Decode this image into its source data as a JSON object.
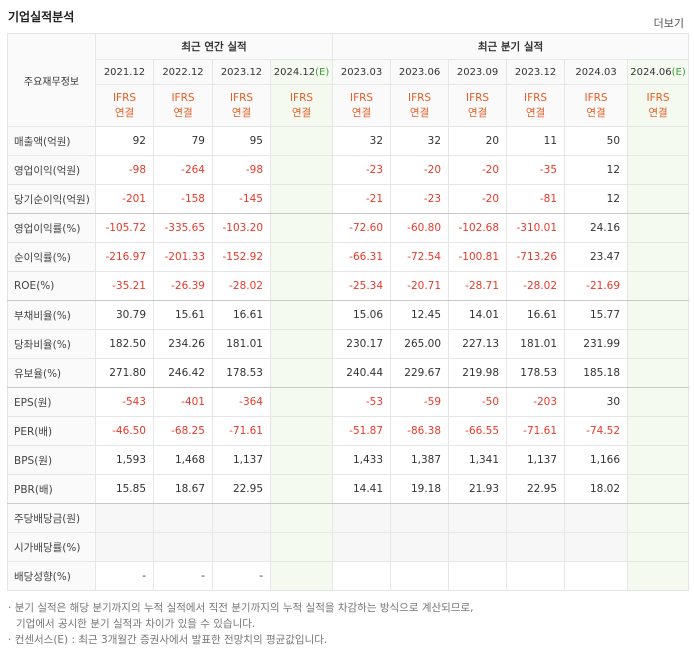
{
  "header": {
    "title": "기업실적분석",
    "more": "더보기"
  },
  "table": {
    "corner": "주요재무정보",
    "groups": [
      {
        "label": "최근 연간 실적",
        "span": 4
      },
      {
        "label": "최근 분기 실적",
        "span": 6
      }
    ],
    "periods": [
      {
        "label": "2021.12"
      },
      {
        "label": "2022.12"
      },
      {
        "label": "2023.12"
      },
      {
        "label": "2024.12",
        "estimate": "(E)"
      },
      {
        "label": "2023.03"
      },
      {
        "label": "2023.06"
      },
      {
        "label": "2023.09"
      },
      {
        "label": "2023.12"
      },
      {
        "label": "2024.03"
      },
      {
        "label": "2024.06",
        "estimate": "(E)"
      }
    ],
    "basis": {
      "standard": "IFRS",
      "scope": "연결"
    },
    "rows": [
      {
        "label": "매출액(억원)",
        "values": [
          "92",
          "79",
          "95",
          null,
          "32",
          "32",
          "20",
          "11",
          "50",
          null
        ]
      },
      {
        "label": "영업이익(억원)",
        "values": [
          "-98",
          "-264",
          "-98",
          null,
          "-23",
          "-20",
          "-20",
          "-35",
          "12",
          null
        ]
      },
      {
        "label": "당기순이익(억원)",
        "values": [
          "-201",
          "-158",
          "-145",
          null,
          "-21",
          "-23",
          "-20",
          "-81",
          "12",
          null
        ]
      },
      {
        "label": "영업이익률(%)",
        "values": [
          "-105.72",
          "-335.65",
          "-103.20",
          null,
          "-72.60",
          "-60.80",
          "-102.68",
          "-310.01",
          "24.16",
          null
        ]
      },
      {
        "label": "순이익률(%)",
        "values": [
          "-216.97",
          "-201.33",
          "-152.92",
          null,
          "-66.31",
          "-72.54",
          "-100.81",
          "-713.26",
          "23.47",
          null
        ]
      },
      {
        "label": "ROE(%)",
        "values": [
          "-35.21",
          "-26.39",
          "-28.02",
          null,
          "-25.34",
          "-20.71",
          "-28.71",
          "-28.02",
          "-21.69",
          null
        ]
      },
      {
        "label": "부채비율(%)",
        "values": [
          "30.79",
          "15.61",
          "16.61",
          null,
          "15.06",
          "12.45",
          "14.01",
          "16.61",
          "15.77",
          null
        ]
      },
      {
        "label": "당좌비율(%)",
        "values": [
          "182.50",
          "234.26",
          "181.01",
          null,
          "230.17",
          "265.00",
          "227.13",
          "181.01",
          "231.99",
          null
        ]
      },
      {
        "label": "유보율(%)",
        "values": [
          "271.80",
          "246.42",
          "178.53",
          null,
          "240.44",
          "229.67",
          "219.98",
          "178.53",
          "185.18",
          null
        ]
      },
      {
        "label": "EPS(원)",
        "values": [
          "-543",
          "-401",
          "-364",
          null,
          "-53",
          "-59",
          "-50",
          "-203",
          "30",
          null
        ]
      },
      {
        "label": "PER(배)",
        "values": [
          "-46.50",
          "-68.25",
          "-71.61",
          null,
          "-51.87",
          "-86.38",
          "-66.55",
          "-71.61",
          "-74.52",
          null
        ]
      },
      {
        "label": "BPS(원)",
        "values": [
          "1,593",
          "1,468",
          "1,137",
          null,
          "1,433",
          "1,387",
          "1,341",
          "1,137",
          "1,166",
          null
        ]
      },
      {
        "label": "PBR(배)",
        "values": [
          "15.85",
          "18.67",
          "22.95",
          null,
          "14.41",
          "19.18",
          "21.93",
          "22.95",
          "18.02",
          null
        ]
      },
      {
        "label": "주당배당금(원)",
        "values": [
          null,
          null,
          null,
          null,
          null,
          null,
          null,
          null,
          null,
          null
        ]
      },
      {
        "label": "시가배당률(%)",
        "values": [
          null,
          null,
          null,
          null,
          null,
          null,
          null,
          null,
          null,
          null
        ]
      },
      {
        "label": "배당성향(%)",
        "values": [
          "-",
          "-",
          "-",
          null,
          null,
          null,
          null,
          null,
          null,
          null
        ]
      }
    ]
  },
  "notes": [
    "분기 실적은 해당 분기까지의 누적 실적에서 직전 분기까지의 누적 실적을 차감하는 방식으로 계산되므로,",
    "기업에서 공시한 분기 실적과 차이가 있을 수 있습니다.",
    "컨센서스(E) : 최근 3개월간 증권사에서 발표한 전망치의 평균값입니다."
  ]
}
